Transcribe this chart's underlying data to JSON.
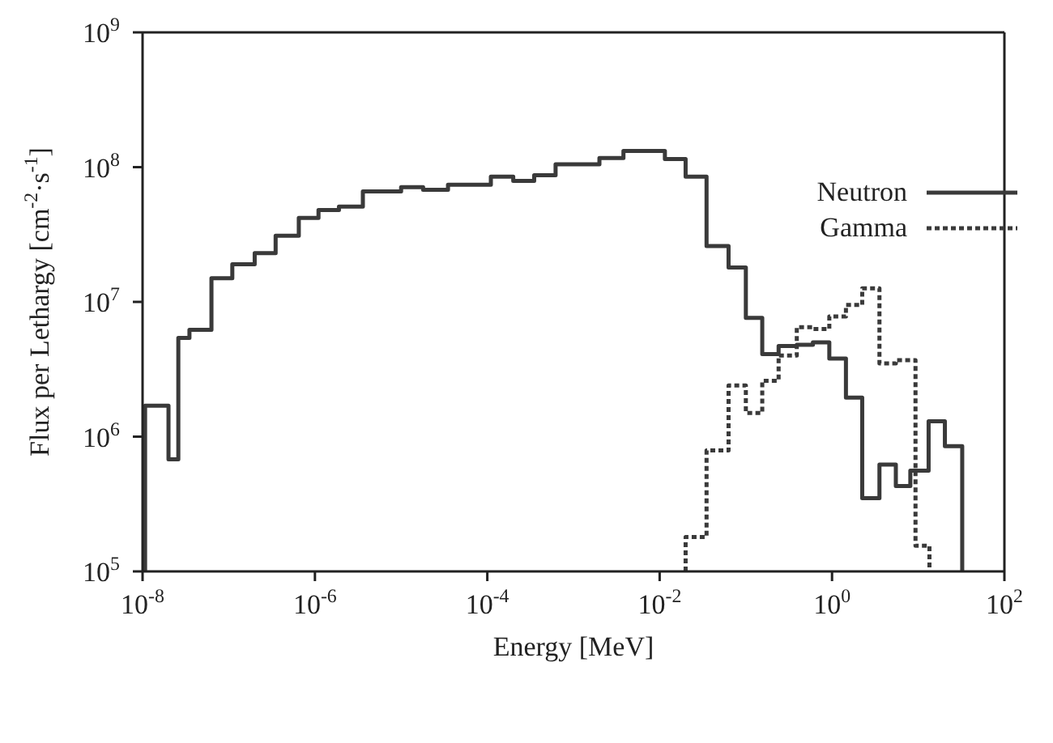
{
  "chart_data": {
    "type": "step",
    "xlabel": "Energy [MeV]",
    "ylabel": "Flux per Lethargy [cm$^{-2}$·s$^{-1}$]",
    "log": "xy",
    "xlim": [
      1e-08,
      100
    ],
    "ylim": [
      100000,
      1000000000
    ],
    "xticks": [
      {
        "value": 1e-08,
        "label": "10$^{-8}$"
      },
      {
        "value": 1e-06,
        "label": "10$^{-6}$"
      },
      {
        "value": 0.0001,
        "label": "10$^{-4}$"
      },
      {
        "value": 0.01,
        "label": "10$^{-2}$"
      },
      {
        "value": 1,
        "label": "10$^{0}$"
      },
      {
        "value": 100,
        "label": "10$^{2}$"
      }
    ],
    "yticks": [
      {
        "value": 100000,
        "label": "10$^{5}$"
      },
      {
        "value": 1000000,
        "label": "10$^{6}$"
      },
      {
        "value": 10000000,
        "label": "10$^{7}$"
      },
      {
        "value": 100000000,
        "label": "10$^{8}$"
      },
      {
        "value": 1000000000,
        "label": "10$^{9}$"
      }
    ],
    "grid": false,
    "legend": "top right",
    "marker": "none",
    "series": [
      {
        "name": "Neutron",
        "color": "#3a3a3a",
        "line_style": "solid",
        "x": [
          1.07e-08,
          1.07e-08,
          2e-08,
          2.6e-08,
          3.5e-08,
          6.3e-08,
          1.1e-07,
          2e-07,
          3.5e-07,
          6.5e-07,
          1.1e-06,
          1.9e-06,
          3.6e-06,
          1e-05,
          1.8e-05,
          3.5e-05,
          0.00011,
          0.0002,
          0.00035,
          0.00062,
          0.002,
          0.0038,
          0.0115,
          0.02,
          0.035,
          0.063,
          0.1,
          0.155,
          0.24,
          0.39,
          0.6,
          0.93,
          1.45,
          2.24,
          3.55,
          5.5,
          8.1,
          13.2,
          20.4,
          32.4
        ],
        "values": [
          100000.0,
          1700000.0,
          680000.0,
          5400000.0,
          6200000.0,
          15000000.0,
          19000000.0,
          23000000.0,
          31000000.0,
          42000000.0,
          48000000.0,
          51000000.0,
          66000000.0,
          71000000.0,
          68000000.0,
          74000000.0,
          85000000.0,
          79000000.0,
          87000000.0,
          105000000.0,
          117000000.0,
          132000000.0,
          115000000.0,
          85000000.0,
          26000000.0,
          18000000.0,
          7600000.0,
          4100000.0,
          4700000.0,
          4800000.0,
          5000000.0,
          3800000.0,
          1950000.0,
          350000.0,
          620000.0,
          430000.0,
          560000.0,
          1300000.0,
          850000.0,
          100000.0
        ]
      },
      {
        "name": "Gamma",
        "color": "#3a3a3a",
        "line_style": "dotted",
        "x": [
          0.02,
          0.02,
          0.035,
          0.063,
          0.1,
          0.155,
          0.24,
          0.39,
          0.6,
          0.93,
          1.45,
          2.24,
          3.55,
          5.5,
          9.3,
          13.5
        ],
        "values": [
          100000.0,
          180000.0,
          790000.0,
          2400000.0,
          1500000.0,
          2600000.0,
          4000000.0,
          6500000.0,
          6300000.0,
          7800000.0,
          9500000.0,
          12600000.0,
          3500000.0,
          3700000.0,
          155000.0,
          100000.0
        ]
      }
    ]
  }
}
